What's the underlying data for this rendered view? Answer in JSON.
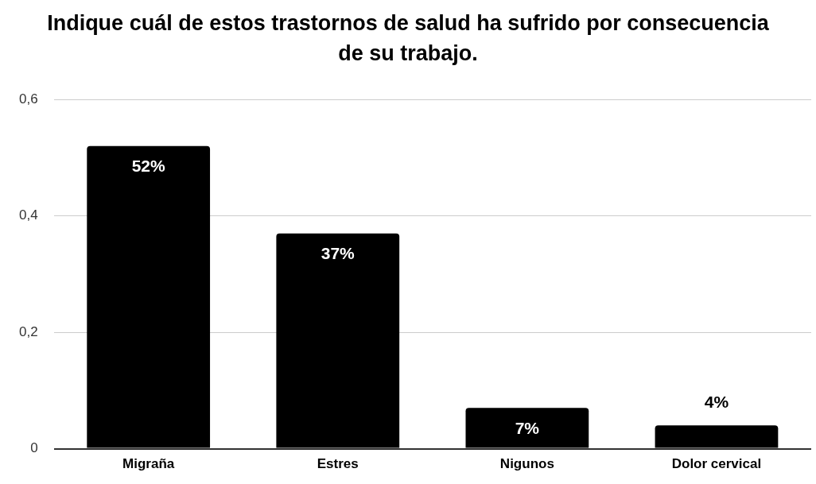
{
  "chart_data": {
    "type": "bar",
    "title": "Indique cuál de estos trastornos de salud ha sufrido por consecuencia de su trabajo.",
    "categories": [
      "Migraña",
      "Estres",
      "Nigunos",
      "Dolor cervical"
    ],
    "values": [
      0.52,
      0.37,
      0.07,
      0.04
    ],
    "value_labels": [
      "52%",
      "37%",
      "7%",
      "4%"
    ],
    "color": "#000000",
    "ylim": [
      0,
      0.6
    ],
    "yticks": [
      {
        "value": 0,
        "label": "0"
      },
      {
        "value": 0.2,
        "label": "0,2"
      },
      {
        "value": 0.4,
        "label": "0,4"
      },
      {
        "value": 0.6,
        "label": "0,6"
      }
    ],
    "grid": "y",
    "legend": false
  }
}
